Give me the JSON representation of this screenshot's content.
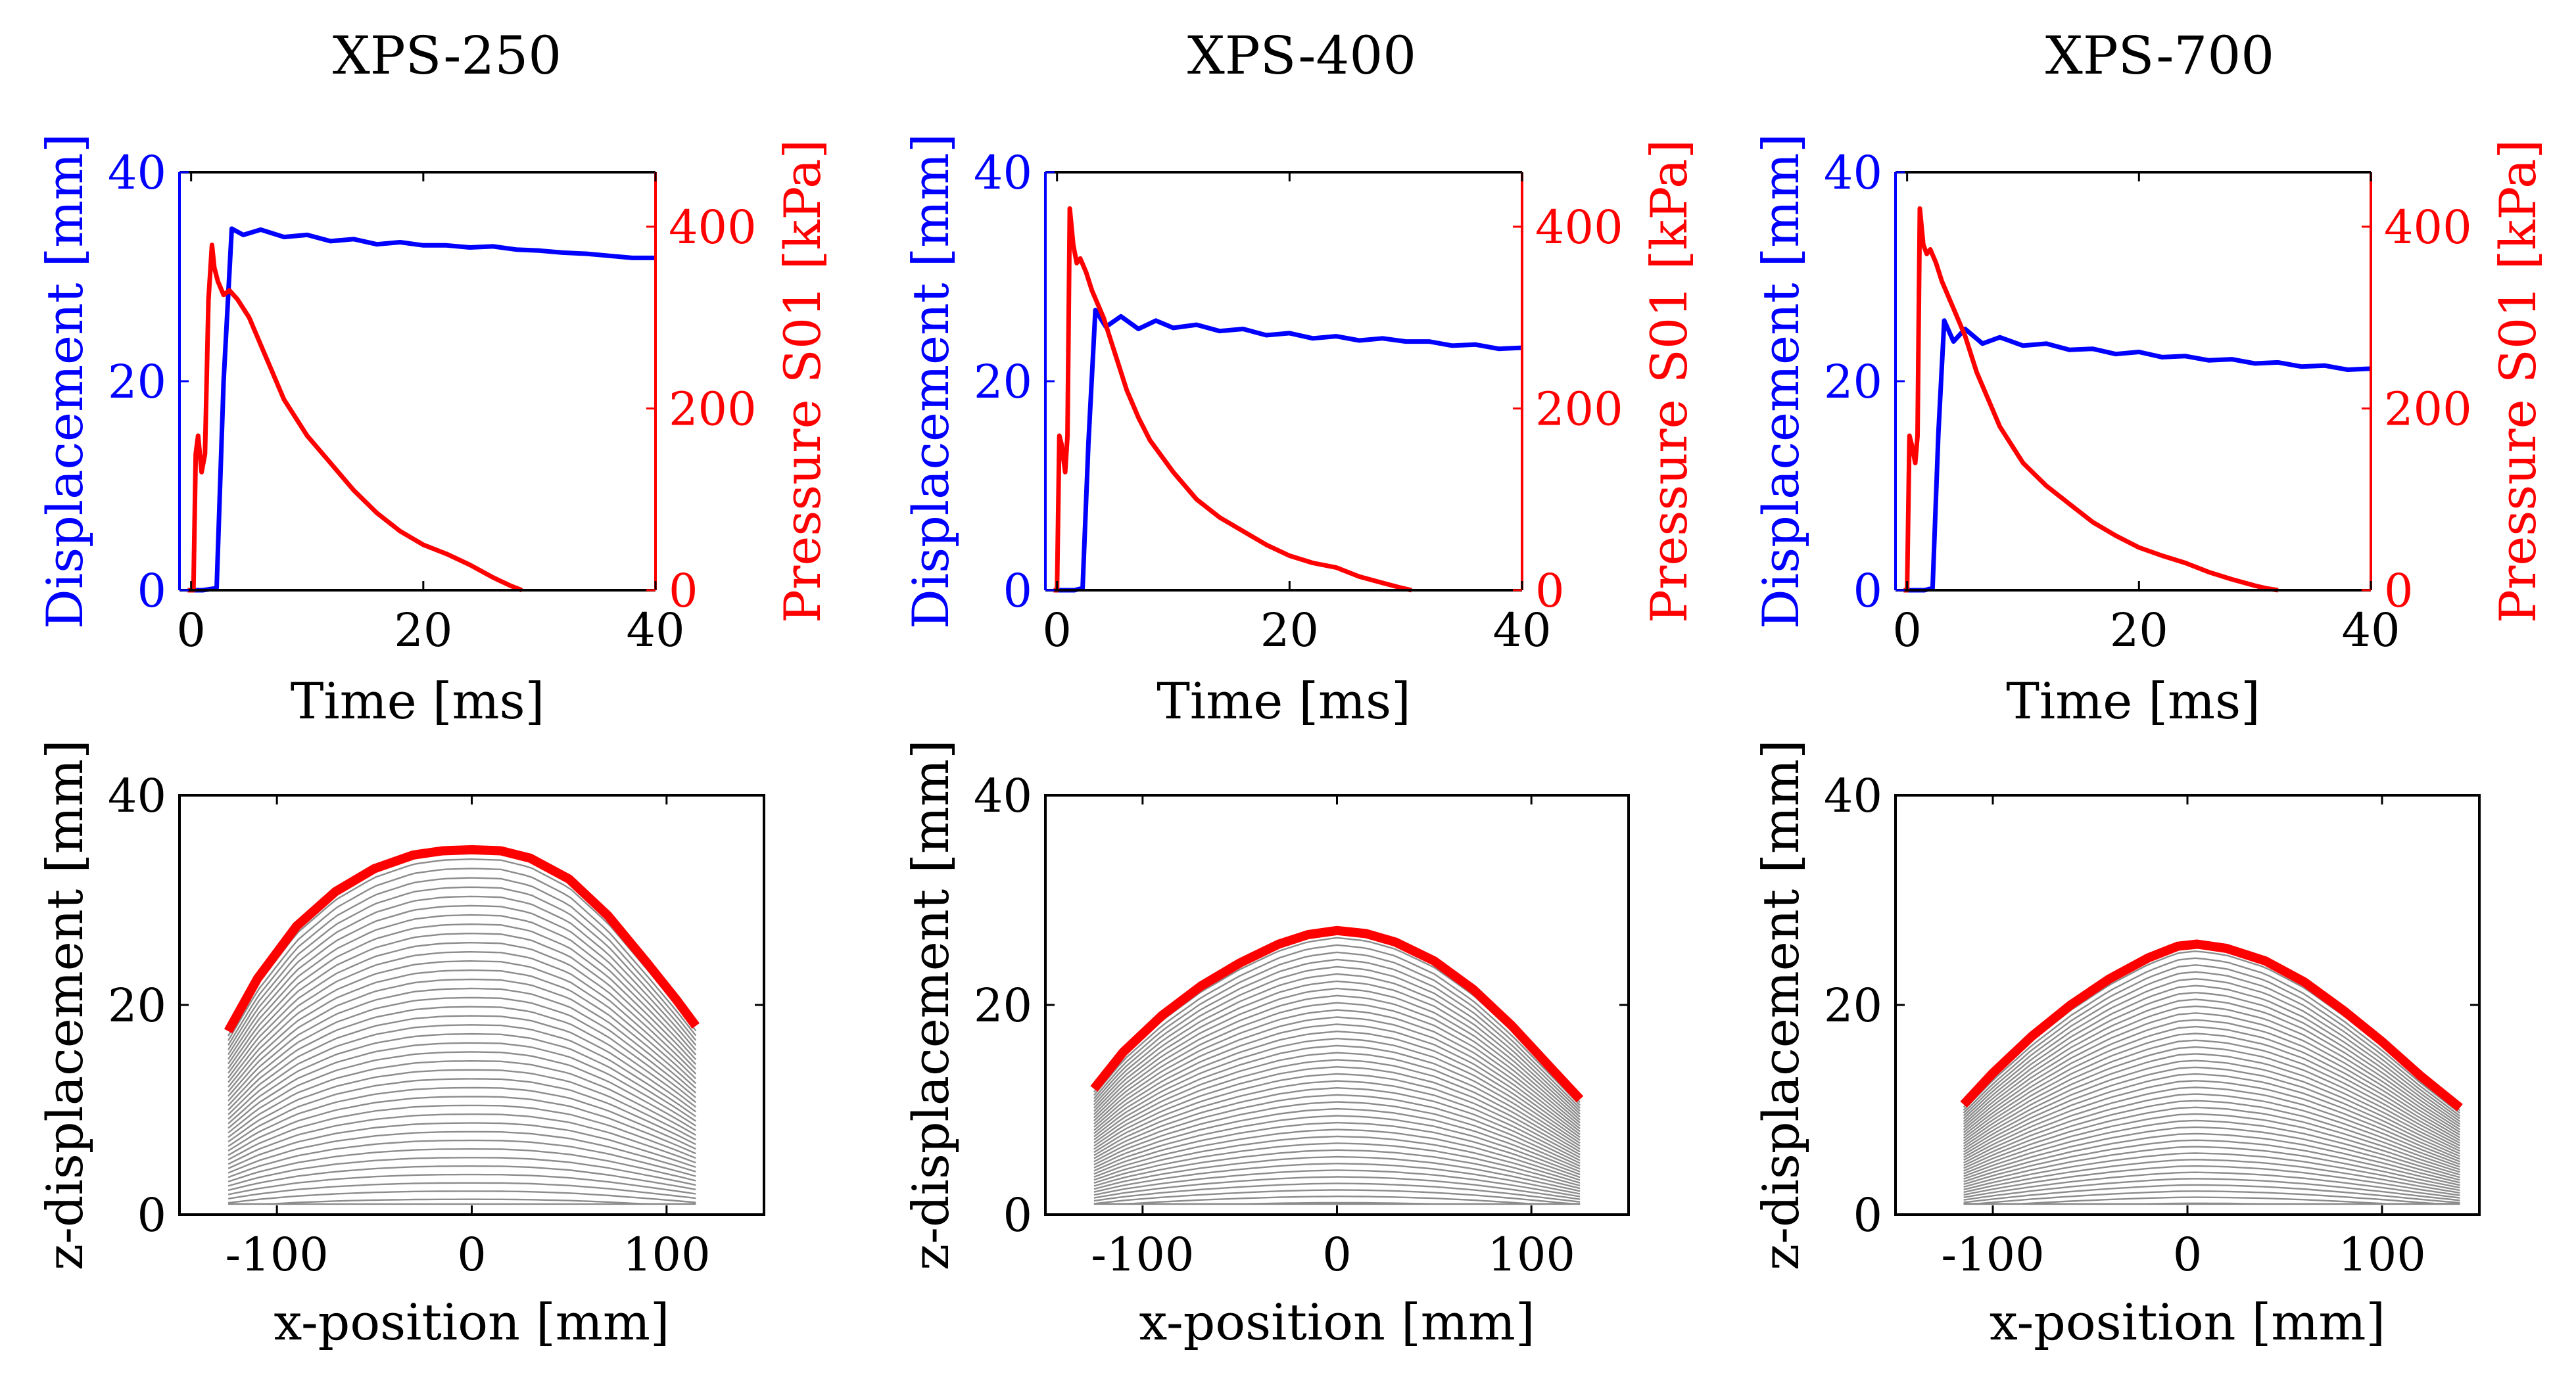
{
  "chart_data": [
    {
      "id": "disp-pressure-250",
      "type": "line",
      "title": "XPS-250",
      "xlabel": "Time [ms]",
      "ylabel_left": "Displacement [mm]",
      "ylabel_right": "Pressure S01 [kPa]",
      "xlim": [
        -1,
        40
      ],
      "ylim_left": [
        0,
        40
      ],
      "ylim_right": [
        0,
        460
      ],
      "xticks": [
        "0",
        "20",
        "40"
      ],
      "yticks_left": [
        "0",
        "20",
        "40"
      ],
      "yticks_right": [
        "0",
        "200",
        "400"
      ],
      "colors": {
        "left": "#0000ff",
        "right": "#ff0000"
      },
      "series": [
        {
          "name": "Displacement",
          "axis": "left",
          "color": "#0000ff",
          "x": [
            0,
            1,
            2.2,
            2.8,
            3.5,
            4.5,
            6,
            8,
            10,
            12,
            14,
            16,
            18,
            20,
            22,
            24,
            26,
            28,
            30,
            32,
            34,
            36,
            38,
            40
          ],
          "y": [
            0,
            0,
            0.2,
            20,
            34.6,
            34,
            34.5,
            33.8,
            34,
            33.4,
            33.6,
            33.1,
            33.3,
            33,
            33,
            32.8,
            32.9,
            32.6,
            32.5,
            32.3,
            32.2,
            32,
            31.8,
            31.8
          ]
        },
        {
          "name": "Pressure S01",
          "axis": "right",
          "color": "#ff0000",
          "x": [
            -0.3,
            0.2,
            0.4,
            0.6,
            0.9,
            1.2,
            1.5,
            1.8,
            2.0,
            2.3,
            2.8,
            3.3,
            4.0,
            5.0,
            6.0,
            7.0,
            8.0,
            10.0,
            12.0,
            14.0,
            16.0,
            18.0,
            20.0,
            22.0,
            24.0,
            26.0,
            27.5,
            28.5
          ],
          "y": [
            0,
            0,
            150,
            170,
            130,
            150,
            320,
            380,
            355,
            340,
            325,
            330,
            320,
            300,
            270,
            240,
            210,
            170,
            140,
            110,
            85,
            65,
            50,
            40,
            28,
            14,
            5,
            0
          ]
        }
      ]
    },
    {
      "id": "disp-pressure-400",
      "type": "line",
      "title": "XPS-400",
      "xlabel": "Time [ms]",
      "ylabel_left": "Displacement [mm]",
      "ylabel_right": "Pressure S01 [kPa]",
      "xlim": [
        -1,
        40
      ],
      "ylim_left": [
        0,
        40
      ],
      "ylim_right": [
        0,
        460
      ],
      "xticks": [
        "0",
        "20",
        "40"
      ],
      "yticks_left": [
        "0",
        "20",
        "40"
      ],
      "yticks_right": [
        "0",
        "200",
        "400"
      ],
      "colors": {
        "left": "#0000ff",
        "right": "#ff0000"
      },
      "series": [
        {
          "name": "Displacement",
          "axis": "left",
          "color": "#0000ff",
          "x": [
            0,
            1.5,
            2.2,
            2.7,
            3.3,
            4.2,
            5.5,
            7,
            8.5,
            10,
            12,
            14,
            16,
            18,
            20,
            22,
            24,
            26,
            28,
            30,
            32,
            34,
            36,
            38,
            40
          ],
          "y": [
            0,
            0,
            0.2,
            14,
            26.8,
            25.2,
            26.2,
            25,
            25.8,
            25.1,
            25.4,
            24.8,
            25,
            24.4,
            24.6,
            24.1,
            24.3,
            23.9,
            24.1,
            23.8,
            23.8,
            23.4,
            23.5,
            23.1,
            23.2
          ]
        },
        {
          "name": "Pressure S01",
          "axis": "right",
          "color": "#ff0000",
          "x": [
            -0.3,
            0.0,
            0.2,
            0.4,
            0.7,
            0.9,
            1.1,
            1.4,
            1.7,
            2.0,
            2.5,
            3.0,
            4.0,
            5.0,
            6.0,
            7.0,
            8.0,
            10.0,
            12.0,
            14.0,
            16.0,
            18.0,
            20.0,
            22.0,
            24.0,
            26.0,
            28.0,
            29.5,
            30.5
          ],
          "y": [
            0,
            0,
            170,
            160,
            130,
            170,
            420,
            380,
            360,
            365,
            350,
            330,
            300,
            260,
            220,
            190,
            165,
            130,
            100,
            80,
            65,
            50,
            38,
            30,
            25,
            15,
            8,
            3,
            0
          ]
        }
      ]
    },
    {
      "id": "disp-pressure-700",
      "type": "line",
      "title": "XPS-700",
      "xlabel": "Time [ms]",
      "ylabel_left": "Displacement [mm]",
      "ylabel_right": "Pressure S01 [kPa]",
      "xlim": [
        -1,
        40
      ],
      "ylim_left": [
        0,
        40
      ],
      "ylim_right": [
        0,
        460
      ],
      "xticks": [
        "0",
        "20",
        "40"
      ],
      "yticks_left": [
        "0",
        "20",
        "40"
      ],
      "yticks_right": [
        "0",
        "200",
        "400"
      ],
      "colors": {
        "left": "#0000ff",
        "right": "#ff0000"
      },
      "series": [
        {
          "name": "Displacement",
          "axis": "left",
          "color": "#0000ff",
          "x": [
            0,
            1.5,
            2.2,
            2.7,
            3.2,
            4.0,
            5.0,
            6.5,
            8,
            10,
            12,
            14,
            16,
            18,
            20,
            22,
            24,
            26,
            28,
            30,
            32,
            34,
            36,
            38,
            40
          ],
          "y": [
            0,
            0,
            0.2,
            15,
            25.8,
            23.8,
            25,
            23.6,
            24.2,
            23.4,
            23.6,
            23,
            23.1,
            22.6,
            22.8,
            22.3,
            22.4,
            22,
            22.1,
            21.7,
            21.8,
            21.4,
            21.5,
            21.1,
            21.2
          ]
        },
        {
          "name": "Pressure S01",
          "axis": "right",
          "color": "#ff0000",
          "x": [
            -0.3,
            0.0,
            0.2,
            0.4,
            0.7,
            0.9,
            1.1,
            1.4,
            1.7,
            2.0,
            2.5,
            3.0,
            4.0,
            5.0,
            6.0,
            7.0,
            8.0,
            10.0,
            12.0,
            14.0,
            16.0,
            18.0,
            20.0,
            22.0,
            24.0,
            26.0,
            28.0,
            30.0,
            31.0,
            32.0
          ],
          "y": [
            0,
            0,
            170,
            160,
            140,
            170,
            420,
            380,
            370,
            375,
            360,
            340,
            310,
            280,
            240,
            210,
            180,
            140,
            115,
            95,
            75,
            60,
            47,
            38,
            30,
            20,
            12,
            5,
            2,
            0
          ]
        }
      ]
    },
    {
      "id": "profile-250",
      "type": "line",
      "xlabel": "x-position [mm]",
      "ylabel": "z-displacement [mm]",
      "xlim": [
        -150,
        150
      ],
      "ylim": [
        0,
        40
      ],
      "xticks": [
        "-100",
        "0",
        "100"
      ],
      "yticks": [
        "0",
        "20",
        "40"
      ],
      "profile_x_range": [
        -125,
        115
      ],
      "profiles": {
        "count": 40,
        "color": "#8c8c8c",
        "description": "intermediate deflection profiles"
      },
      "series": [
        {
          "name": "Maximum deflection",
          "color": "#ff0000",
          "x": [
            -125,
            -110,
            -90,
            -70,
            -50,
            -30,
            -15,
            0,
            15,
            30,
            50,
            70,
            90,
            105,
            115
          ],
          "y": [
            17.5,
            22.5,
            27.5,
            30.8,
            33,
            34.3,
            34.7,
            34.8,
            34.7,
            34,
            32,
            28.5,
            24,
            20.5,
            18
          ]
        }
      ]
    },
    {
      "id": "profile-400",
      "type": "line",
      "xlabel": "x-position [mm]",
      "ylabel": "z-displacement [mm]",
      "xlim": [
        -150,
        150
      ],
      "ylim": [
        0,
        40
      ],
      "xticks": [
        "-100",
        "0",
        "100"
      ],
      "yticks": [
        "0",
        "20",
        "40"
      ],
      "profile_x_range": [
        -125,
        125
      ],
      "profiles": {
        "count": 40,
        "color": "#8c8c8c",
        "description": "intermediate deflection profiles"
      },
      "series": [
        {
          "name": "Maximum deflection",
          "color": "#ff0000",
          "x": [
            -125,
            -110,
            -90,
            -70,
            -50,
            -30,
            -15,
            0,
            15,
            30,
            50,
            70,
            90,
            110,
            125
          ],
          "y": [
            12,
            15.5,
            19,
            21.8,
            24,
            25.8,
            26.7,
            27.1,
            26.8,
            26,
            24.2,
            21.5,
            18,
            14,
            11
          ]
        }
      ]
    },
    {
      "id": "profile-700",
      "type": "line",
      "xlabel": "x-position [mm]",
      "ylabel": "z-displacement [mm]",
      "xlim": [
        -150,
        150
      ],
      "ylim": [
        0,
        40
      ],
      "xticks": [
        "-100",
        "0",
        "100"
      ],
      "yticks": [
        "0",
        "20",
        "40"
      ],
      "profile_x_range": [
        -115,
        140
      ],
      "profiles": {
        "count": 40,
        "color": "#8c8c8c",
        "description": "intermediate deflection profiles"
      },
      "series": [
        {
          "name": "Maximum deflection",
          "color": "#ff0000",
          "x": [
            -115,
            -100,
            -80,
            -60,
            -40,
            -20,
            -5,
            5,
            20,
            40,
            60,
            80,
            100,
            120,
            140
          ],
          "y": [
            10.5,
            13.5,
            17,
            20,
            22.5,
            24.5,
            25.6,
            25.8,
            25.4,
            24.2,
            22.2,
            19.5,
            16.5,
            13.2,
            10.2
          ]
        }
      ]
    }
  ]
}
